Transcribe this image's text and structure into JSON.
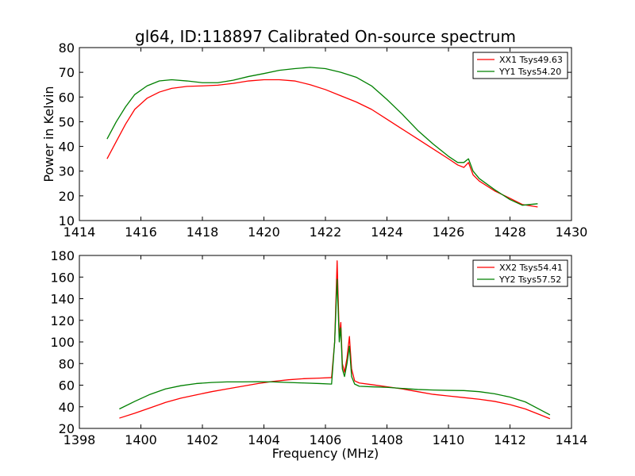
{
  "title": "gl64, ID:118897 Calibrated On-source spectrum",
  "chart_data": [
    {
      "type": "line",
      "xlabel": "",
      "ylabel": "Power in Kelvin",
      "xlim": [
        1414,
        1430
      ],
      "ylim": [
        10,
        80
      ],
      "xticks": [
        1414,
        1416,
        1418,
        1420,
        1422,
        1424,
        1426,
        1428,
        1430
      ],
      "yticks": [
        10,
        20,
        30,
        40,
        50,
        60,
        70,
        80
      ],
      "legend_position": "top-right",
      "series": [
        {
          "name": "XX1 Tsys49.63",
          "color": "#ff0000",
          "x": [
            1414.9,
            1415.2,
            1415.5,
            1415.8,
            1416.2,
            1416.6,
            1417.0,
            1417.5,
            1418.0,
            1418.5,
            1419.0,
            1419.5,
            1420.0,
            1420.5,
            1421.0,
            1421.5,
            1422.0,
            1422.5,
            1423.0,
            1423.5,
            1424.0,
            1424.5,
            1425.0,
            1425.5,
            1426.0,
            1426.3,
            1426.5,
            1426.65,
            1426.8,
            1427.0,
            1427.5,
            1428.0,
            1428.4,
            1428.9
          ],
          "y": [
            35,
            42,
            49,
            55,
            59.5,
            62,
            63.5,
            64.3,
            64.5,
            64.8,
            65.5,
            66.5,
            67,
            67,
            66.5,
            65,
            63,
            60.5,
            58,
            55,
            51,
            47,
            43,
            39,
            35,
            32.5,
            31.5,
            33.5,
            28.5,
            26,
            22,
            19,
            16.5,
            15.5
          ]
        },
        {
          "name": "YY1 Tsys54.20",
          "color": "#008000",
          "x": [
            1414.9,
            1415.2,
            1415.5,
            1415.8,
            1416.2,
            1416.6,
            1417.0,
            1417.5,
            1418.0,
            1418.5,
            1419.0,
            1419.5,
            1420.0,
            1420.5,
            1421.0,
            1421.5,
            1422.0,
            1422.5,
            1423.0,
            1423.5,
            1424.0,
            1424.5,
            1425.0,
            1425.5,
            1426.0,
            1426.3,
            1426.5,
            1426.65,
            1426.8,
            1427.0,
            1427.5,
            1428.0,
            1428.4,
            1428.9
          ],
          "y": [
            43,
            50,
            56,
            61,
            64.5,
            66.5,
            67,
            66.5,
            65.8,
            65.8,
            66.8,
            68.3,
            69.5,
            70.8,
            71.5,
            72,
            71.5,
            70,
            68,
            64.5,
            59,
            53,
            46.5,
            41,
            36,
            33.5,
            33.5,
            35,
            30,
            27,
            22.5,
            18.5,
            16.2,
            16.8
          ]
        }
      ]
    },
    {
      "type": "line",
      "xlabel": "Frequency (MHz)",
      "ylabel": "",
      "xlim": [
        1398,
        1414
      ],
      "ylim": [
        20,
        180
      ],
      "xticks": [
        1398,
        1400,
        1402,
        1404,
        1406,
        1408,
        1410,
        1412,
        1414
      ],
      "yticks": [
        20,
        40,
        60,
        80,
        100,
        120,
        140,
        160,
        180
      ],
      "legend_position": "top-right",
      "series": [
        {
          "name": "XX2 Tsys54.41",
          "color": "#ff0000",
          "x": [
            1399.3,
            1399.8,
            1400.3,
            1400.8,
            1401.3,
            1401.8,
            1402.3,
            1402.8,
            1403.3,
            1403.8,
            1404.3,
            1404.8,
            1405.3,
            1405.8,
            1406.2,
            1406.3,
            1406.38,
            1406.45,
            1406.5,
            1406.55,
            1406.62,
            1406.7,
            1406.78,
            1406.85,
            1406.95,
            1407.1,
            1407.5,
            1408.0,
            1408.5,
            1409.0,
            1409.5,
            1410.0,
            1410.5,
            1411.0,
            1411.5,
            1412.0,
            1412.5,
            1413.3
          ],
          "y": [
            29.5,
            34,
            39,
            44,
            48,
            51,
            54,
            56.5,
            59,
            61.5,
            63.5,
            65,
            66,
            66.5,
            67,
            100,
            175,
            105,
            118,
            80,
            72,
            85,
            105,
            75,
            64,
            62,
            60.5,
            58.5,
            56.5,
            54,
            51.5,
            50,
            48.5,
            47,
            45,
            42,
            38,
            29
          ]
        },
        {
          "name": "YY2 Tsys57.52",
          "color": "#008000",
          "x": [
            1399.3,
            1399.8,
            1400.3,
            1400.8,
            1401.3,
            1401.8,
            1402.3,
            1402.8,
            1403.3,
            1403.8,
            1404.3,
            1404.8,
            1405.3,
            1405.8,
            1406.2,
            1406.3,
            1406.38,
            1406.45,
            1406.5,
            1406.55,
            1406.62,
            1406.7,
            1406.78,
            1406.85,
            1406.95,
            1407.1,
            1407.5,
            1408.0,
            1408.5,
            1409.0,
            1409.5,
            1410.0,
            1410.5,
            1411.0,
            1411.5,
            1412.0,
            1412.5,
            1413.3
          ],
          "y": [
            38,
            45,
            51.5,
            56.5,
            59.5,
            61.5,
            62.5,
            63,
            63,
            63.2,
            63,
            62.5,
            62,
            61.5,
            61,
            100,
            158,
            100,
            113,
            75,
            68,
            80,
            96,
            68,
            61,
            59,
            58.5,
            58,
            57,
            56,
            55.5,
            55.2,
            55,
            54,
            52,
            49,
            44.5,
            32.5
          ]
        }
      ]
    }
  ]
}
